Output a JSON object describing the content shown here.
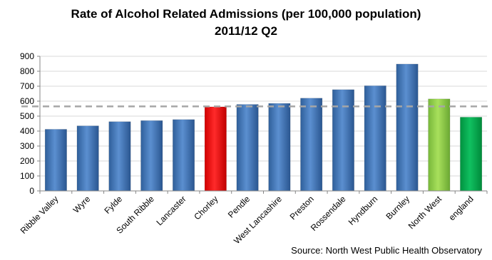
{
  "chart_data": {
    "type": "bar",
    "title_line1": "Rate of Alcohol Related Admissions (per 100,000 population)",
    "title_line2": "2011/12 Q2",
    "source": "Source: North West Public Health Observatory",
    "categories": [
      "Ribble Valley",
      "Wyre",
      "Fylde",
      "South Ribble",
      "Lancaster",
      "Chorley",
      "Pendle",
      "West Lancashire",
      "Preston",
      "Rossendale",
      "Hyndburn",
      "Burnley",
      "North West",
      "england"
    ],
    "values": [
      412,
      435,
      463,
      470,
      477,
      562,
      578,
      585,
      620,
      677,
      703,
      848,
      615,
      493
    ],
    "bar_colors": [
      "#4f81bd",
      "#4f81bd",
      "#4f81bd",
      "#4f81bd",
      "#4f81bd",
      "#ff0000",
      "#4f81bd",
      "#4f81bd",
      "#4f81bd",
      "#4f81bd",
      "#4f81bd",
      "#4f81bd",
      "#92d050",
      "#00b050"
    ],
    "reference_line": 565,
    "reference_line_style": "dashed",
    "reference_line_color": "#a6a6a6",
    "ylim": [
      0,
      900
    ],
    "yticks": [
      "0",
      "100",
      "200",
      "300",
      "400",
      "500",
      "600",
      "700",
      "800",
      "900"
    ],
    "grid": true,
    "legend": "none"
  }
}
